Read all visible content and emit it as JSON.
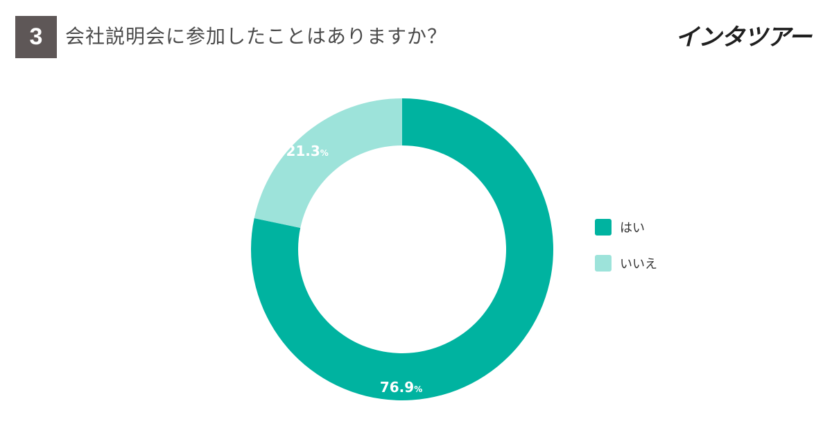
{
  "header": {
    "question_number": "3",
    "title": "会社説明会に参加したことはありますか？",
    "brand": "インタツアー"
  },
  "colors": {
    "badge": "#5e5757",
    "brand_accent": "#00b3a0"
  },
  "chart_data": {
    "type": "pie",
    "donut": true,
    "title": "会社説明会に参加したことはありますか？",
    "series": [
      {
        "name": "はい",
        "value": 76.9,
        "label": "76.9",
        "color": "#00b3a0"
      },
      {
        "name": "いいえ",
        "value": 21.3,
        "label": "21.3",
        "color": "#9de3da"
      }
    ],
    "unit": "%",
    "legend_position": "right"
  }
}
